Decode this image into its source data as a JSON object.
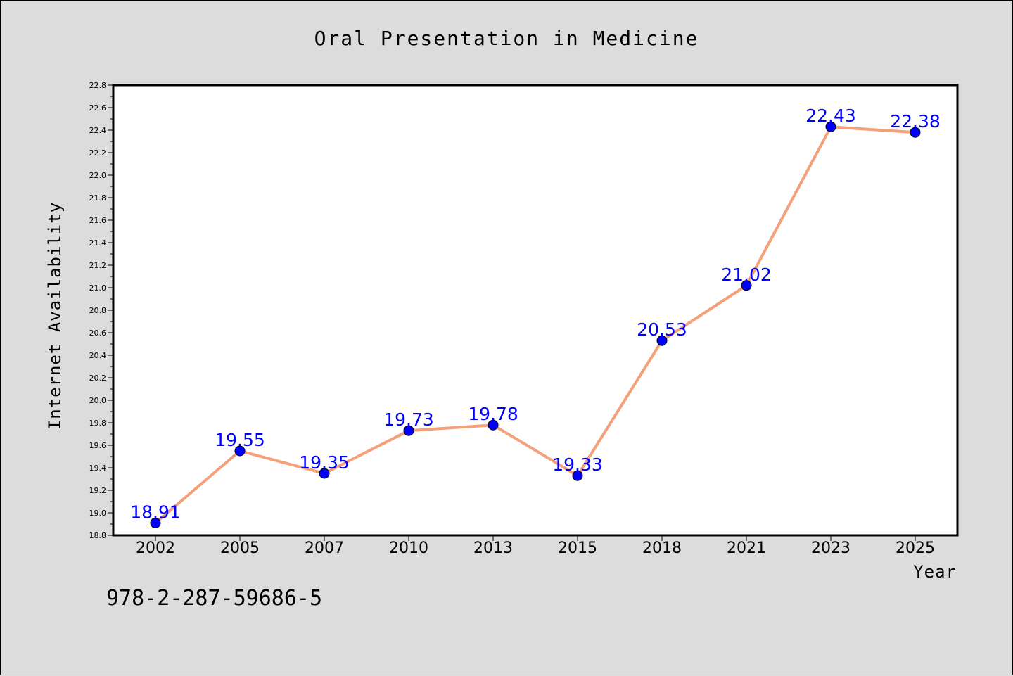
{
  "chart_data": {
    "type": "line",
    "title": "Oral Presentation in Medicine",
    "xlabel": "Year",
    "ylabel": "Internet Availability",
    "categories": [
      "2002",
      "2005",
      "2007",
      "2010",
      "2013",
      "2015",
      "2018",
      "2021",
      "2023",
      "2025"
    ],
    "series": [
      {
        "values": [
          18.91,
          19.55,
          19.35,
          19.73,
          19.78,
          19.33,
          20.53,
          21.02,
          22.43,
          22.38
        ],
        "labels": [
          "18.91",
          "19.55",
          "19.35",
          "19.73",
          "19.78",
          "19.33",
          "20.53",
          "21.02",
          "22.43",
          "22.38"
        ],
        "line_color": "#f4a07a",
        "marker_color": "#0000ff",
        "label_color": "#0000ff"
      }
    ],
    "ylim": [
      18.8,
      22.8
    ],
    "yticks": [
      "18.8",
      "19.0",
      "19.2",
      "19.4",
      "19.6",
      "19.8",
      "20.0",
      "20.2",
      "20.4",
      "20.6",
      "20.8",
      "21.0",
      "21.2",
      "21.4",
      "21.6",
      "21.8",
      "22.0",
      "22.2",
      "22.4",
      "22.6",
      "22.8"
    ],
    "grid": false,
    "legend": "none"
  },
  "footer": {
    "code": "978-2-287-59686-5"
  },
  "colors": {
    "figure_background": "#dcdcdc",
    "plot_background": "#ffffff"
  }
}
